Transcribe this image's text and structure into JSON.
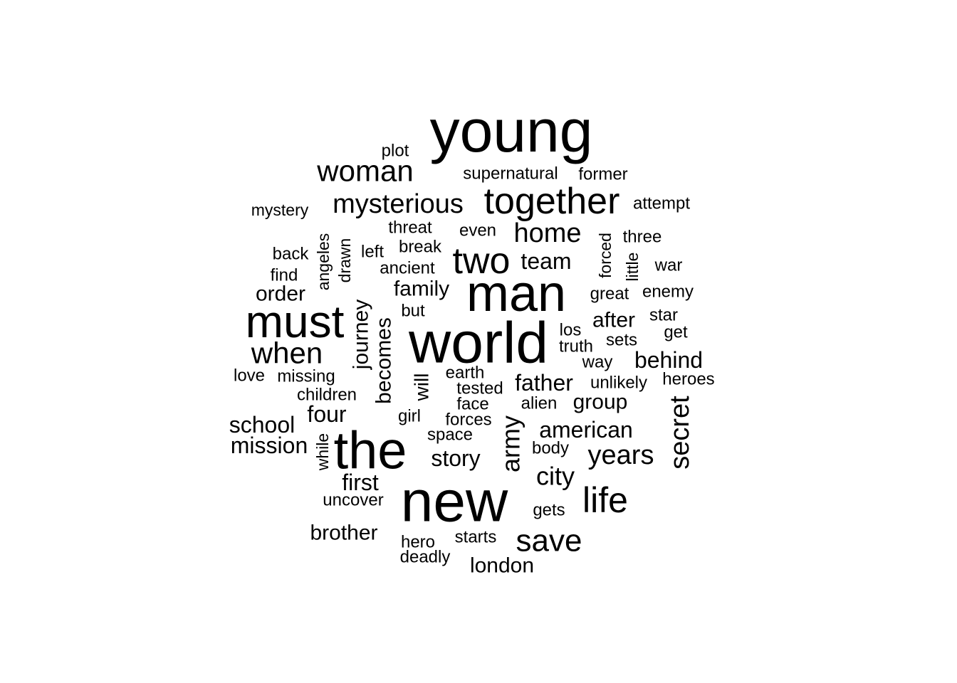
{
  "words": [
    {
      "text": "young",
      "weight": 90
    },
    {
      "text": "new",
      "weight": 88
    },
    {
      "text": "world",
      "weight": 88
    },
    {
      "text": "the",
      "weight": 80
    },
    {
      "text": "man",
      "weight": 78
    },
    {
      "text": "must",
      "weight": 70
    },
    {
      "text": "together",
      "weight": 60
    },
    {
      "text": "two",
      "weight": 58
    },
    {
      "text": "life",
      "weight": 54
    },
    {
      "text": "woman",
      "weight": 48
    },
    {
      "text": "when",
      "weight": 48
    },
    {
      "text": "save",
      "weight": 48
    },
    {
      "text": "mysterious",
      "weight": 44
    },
    {
      "text": "home",
      "weight": 42
    },
    {
      "text": "secret",
      "weight": 42
    },
    {
      "text": "years",
      "weight": 42
    },
    {
      "text": "army",
      "weight": 40
    },
    {
      "text": "city",
      "weight": 40
    },
    {
      "text": "journey",
      "weight": 36
    },
    {
      "text": "becomes",
      "weight": 36
    },
    {
      "text": "team",
      "weight": 34
    },
    {
      "text": "behind",
      "weight": 34
    },
    {
      "text": "father",
      "weight": 34
    },
    {
      "text": "school",
      "weight": 34
    },
    {
      "text": "mission",
      "weight": 34
    },
    {
      "text": "first",
      "weight": 34
    },
    {
      "text": "four",
      "weight": 34
    },
    {
      "text": "story",
      "weight": 34
    },
    {
      "text": "american",
      "weight": 34
    },
    {
      "text": "brother",
      "weight": 32
    },
    {
      "text": "family",
      "weight": 32
    },
    {
      "text": "order",
      "weight": 32
    },
    {
      "text": "london",
      "weight": 32
    },
    {
      "text": "after",
      "weight": 32
    },
    {
      "text": "group",
      "weight": 32
    },
    {
      "text": "will",
      "weight": 32
    },
    {
      "text": "supernatural",
      "weight": 26
    },
    {
      "text": "former",
      "weight": 26
    },
    {
      "text": "attempt",
      "weight": 26
    },
    {
      "text": "three",
      "weight": 26
    },
    {
      "text": "mystery",
      "weight": 24
    },
    {
      "text": "threat",
      "weight": 26
    },
    {
      "text": "even",
      "weight": 26
    },
    {
      "text": "break",
      "weight": 26
    },
    {
      "text": "left",
      "weight": 26
    },
    {
      "text": "back",
      "weight": 26
    },
    {
      "text": "ancient",
      "weight": 26
    },
    {
      "text": "find",
      "weight": 26
    },
    {
      "text": "angeles",
      "weight": 24
    },
    {
      "text": "drawn",
      "weight": 24
    },
    {
      "text": "forced",
      "weight": 24
    },
    {
      "text": "little",
      "weight": 24
    },
    {
      "text": "war",
      "weight": 26
    },
    {
      "text": "great",
      "weight": 26
    },
    {
      "text": "enemy",
      "weight": 26
    },
    {
      "text": "star",
      "weight": 26
    },
    {
      "text": "get",
      "weight": 26
    },
    {
      "text": "but",
      "weight": 26
    },
    {
      "text": "los",
      "weight": 26
    },
    {
      "text": "truth",
      "weight": 26
    },
    {
      "text": "sets",
      "weight": 26
    },
    {
      "text": "way",
      "weight": 26
    },
    {
      "text": "unlikely",
      "weight": 26
    },
    {
      "text": "heroes",
      "weight": 26
    },
    {
      "text": "love",
      "weight": 26
    },
    {
      "text": "missing",
      "weight": 26
    },
    {
      "text": "earth",
      "weight": 26
    },
    {
      "text": "tested",
      "weight": 26
    },
    {
      "text": "children",
      "weight": 26
    },
    {
      "text": "face",
      "weight": 26
    },
    {
      "text": "alien",
      "weight": 26
    },
    {
      "text": "girl",
      "weight": 26
    },
    {
      "text": "forces",
      "weight": 26
    },
    {
      "text": "space",
      "weight": 26
    },
    {
      "text": "body",
      "weight": 26
    },
    {
      "text": "while",
      "weight": 24
    },
    {
      "text": "uncover",
      "weight": 26
    },
    {
      "text": "gets",
      "weight": 26
    },
    {
      "text": "hero",
      "weight": 26
    },
    {
      "text": "starts",
      "weight": 26
    },
    {
      "text": "deadly",
      "weight": 26
    },
    {
      "text": "plot",
      "weight": 26
    }
  ]
}
